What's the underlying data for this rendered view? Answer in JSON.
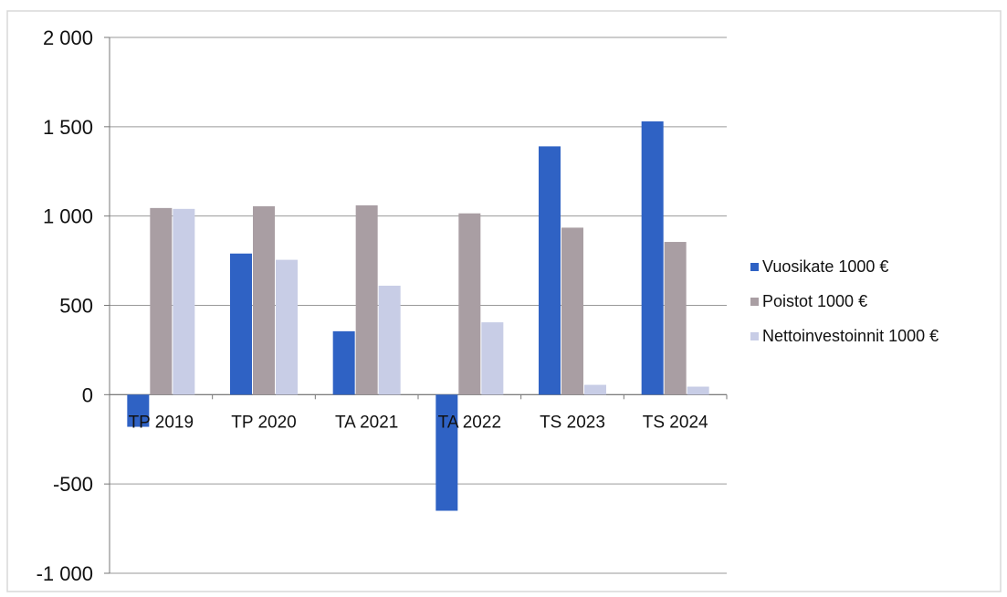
{
  "chart_data": {
    "type": "bar",
    "title": "",
    "xlabel": "",
    "ylabel": "",
    "categories": [
      "TP 2019",
      "TP 2020",
      "TA 2021",
      "TA 2022",
      "TS 2023",
      "TS 2024"
    ],
    "series": [
      {
        "name": "Vuosikate 1000 €",
        "color": "#2f62c4",
        "values": [
          -180,
          790,
          355,
          -650,
          1390,
          1530
        ]
      },
      {
        "name": "Poistot 1000 €",
        "color": "#a99ea3",
        "values": [
          1045,
          1055,
          1060,
          1015,
          935,
          855
        ]
      },
      {
        "name": "Nettoinvestoinnit 1000 €",
        "color": "#c8cde6",
        "values": [
          1040,
          755,
          610,
          405,
          55,
          45
        ]
      }
    ],
    "ylim": [
      -1000,
      2000
    ],
    "yticks": [
      2000,
      1500,
      1000,
      500,
      0,
      -500,
      -1000
    ],
    "ytick_labels": [
      "2 000",
      "1 500",
      "1 000",
      "500",
      "0",
      "-500",
      "-1 000"
    ],
    "grid": true,
    "legend_position": "right"
  }
}
